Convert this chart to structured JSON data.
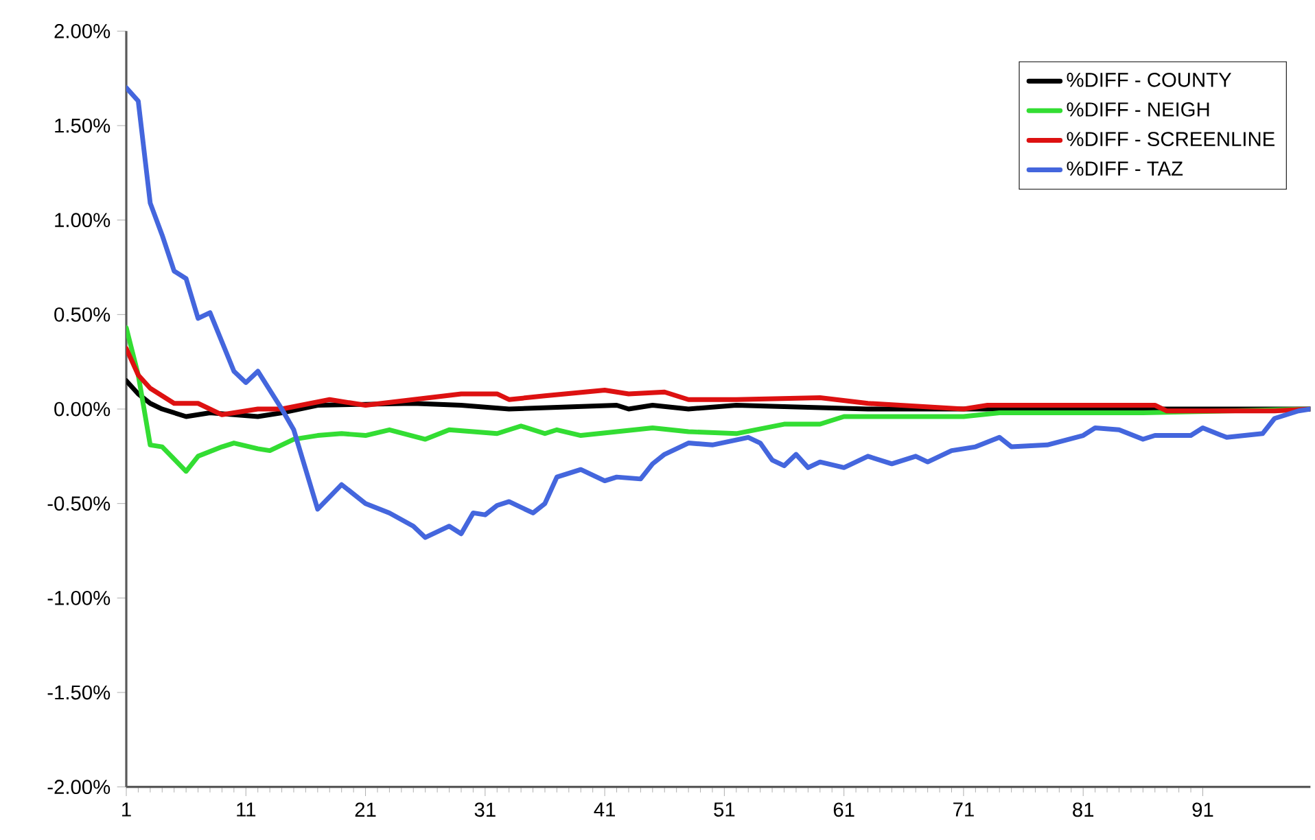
{
  "chart_data": {
    "type": "line",
    "xlim": [
      1,
      100
    ],
    "xticks": [
      1,
      11,
      21,
      31,
      41,
      51,
      61,
      71,
      81,
      91
    ],
    "ylim": [
      -2,
      2
    ],
    "yticks": [
      {
        "value": -2,
        "label": "-2.00%"
      },
      {
        "value": -1.5,
        "label": "-1.50%"
      },
      {
        "value": -1,
        "label": "-1.00%"
      },
      {
        "value": -0.5,
        "label": "-0.50%"
      },
      {
        "value": 0,
        "label": "0.00%"
      },
      {
        "value": 0.5,
        "label": "0.50%"
      },
      {
        "value": 1,
        "label": "1.00%"
      },
      {
        "value": 1.5,
        "label": "1.50%"
      },
      {
        "value": 2,
        "label": "2.00%"
      }
    ],
    "grid": false,
    "legend": "top right",
    "marker": "none",
    "line_style": "solid",
    "series": [
      {
        "name": "%DIFF - COUNTY",
        "color": "#000000",
        "x": [
          1,
          2,
          3,
          4,
          6,
          8,
          12,
          14,
          17,
          25,
          29,
          33,
          42,
          43,
          45,
          48,
          52,
          63,
          80,
          100
        ],
        "values": [
          0.15,
          0.08,
          0.03,
          0,
          -0.04,
          -0.02,
          -0.04,
          -0.02,
          0.02,
          0.03,
          0.02,
          0,
          0.02,
          0,
          0.02,
          0,
          0.02,
          0,
          0,
          0
        ]
      },
      {
        "name": "%DIFF - NEIGH",
        "color": "#33dd33",
        "x": [
          1,
          2,
          3,
          4,
          6,
          7,
          9,
          10,
          12,
          13,
          15,
          17,
          19,
          21,
          23,
          26,
          28,
          32,
          34,
          36,
          37,
          39,
          42,
          45,
          48,
          52,
          56,
          59,
          61,
          63,
          71,
          74,
          86,
          100
        ],
        "values": [
          0.43,
          0.18,
          -0.19,
          -0.2,
          -0.33,
          -0.25,
          -0.2,
          -0.18,
          -0.21,
          -0.22,
          -0.16,
          -0.14,
          -0.13,
          -0.14,
          -0.11,
          -0.16,
          -0.11,
          -0.13,
          -0.09,
          -0.13,
          -0.11,
          -0.14,
          -0.12,
          -0.1,
          -0.12,
          -0.13,
          -0.08,
          -0.08,
          -0.04,
          -0.04,
          -0.04,
          -0.02,
          -0.02,
          0
        ]
      },
      {
        "name": "%DIFF - SCREENLINE",
        "color": "#dd1111",
        "x": [
          1,
          2,
          3,
          5,
          7,
          9,
          12,
          14,
          18,
          21,
          25,
          29,
          32,
          33,
          36,
          41,
          43,
          46,
          48,
          52,
          59,
          63,
          71,
          73,
          82,
          87,
          88,
          97,
          100
        ],
        "values": [
          0.32,
          0.18,
          0.11,
          0.03,
          0.03,
          -0.03,
          0,
          0,
          0.05,
          0.02,
          0.05,
          0.08,
          0.08,
          0.05,
          0.07,
          0.1,
          0.08,
          0.09,
          0.05,
          0.05,
          0.06,
          0.03,
          0,
          0.02,
          0.02,
          0.02,
          -0.01,
          -0.01,
          0
        ]
      },
      {
        "name": "%DIFF - TAZ",
        "color": "#4466dd",
        "x": [
          1,
          2,
          3,
          4,
          5,
          6,
          7,
          8,
          10,
          11,
          12,
          14,
          15,
          17,
          19,
          21,
          23,
          25,
          26,
          28,
          29,
          30,
          31,
          32,
          33,
          35,
          36,
          37,
          39,
          41,
          42,
          44,
          45,
          46,
          48,
          50,
          53,
          54,
          55,
          56,
          57,
          58,
          59,
          61,
          63,
          65,
          67,
          68,
          70,
          72,
          74,
          75,
          78,
          81,
          82,
          84,
          86,
          87,
          90,
          91,
          93,
          96,
          97,
          99,
          100
        ],
        "values": [
          1.7,
          1.63,
          1.09,
          0.92,
          0.73,
          0.69,
          0.48,
          0.51,
          0.2,
          0.14,
          0.2,
          0,
          -0.11,
          -0.53,
          -0.4,
          -0.5,
          -0.55,
          -0.62,
          -0.68,
          -0.62,
          -0.66,
          -0.55,
          -0.56,
          -0.51,
          -0.49,
          -0.55,
          -0.5,
          -0.36,
          -0.32,
          -0.38,
          -0.36,
          -0.37,
          -0.29,
          -0.24,
          -0.18,
          -0.19,
          -0.15,
          -0.18,
          -0.27,
          -0.3,
          -0.24,
          -0.31,
          -0.28,
          -0.31,
          -0.25,
          -0.29,
          -0.25,
          -0.28,
          -0.22,
          -0.2,
          -0.15,
          -0.2,
          -0.19,
          -0.14,
          -0.1,
          -0.11,
          -0.16,
          -0.14,
          -0.14,
          -0.1,
          -0.15,
          -0.13,
          -0.05,
          -0.01,
          0
        ]
      }
    ]
  }
}
